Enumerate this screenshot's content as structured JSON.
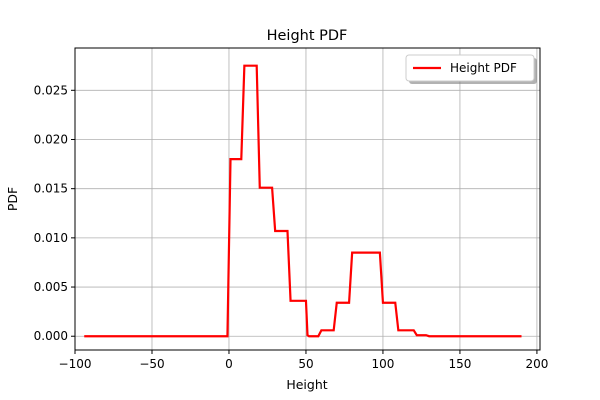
{
  "chart_data": {
    "type": "line",
    "title": "Height PDF",
    "xlabel": "Height",
    "ylabel": "PDF",
    "xlim": [
      -100,
      202
    ],
    "ylim": [
      -0.0014,
      0.0293
    ],
    "xticks": [
      -100,
      -50,
      0,
      50,
      100,
      150,
      200
    ],
    "xtick_labels": [
      "−100",
      "−50",
      "0",
      "50",
      "100",
      "150",
      "200"
    ],
    "yticks": [
      0.0,
      0.005,
      0.01,
      0.015,
      0.02,
      0.025
    ],
    "ytick_labels": [
      "0.000",
      "0.005",
      "0.010",
      "0.015",
      "0.020",
      "0.025"
    ],
    "grid": true,
    "legend": {
      "placement": "top-right",
      "shadow": true
    },
    "series": [
      {
        "name": "Height PDF",
        "color": "#ff0000",
        "x": [
          -94,
          -1,
          1,
          8,
          10,
          18,
          20,
          28,
          30,
          38,
          40,
          48,
          50,
          51,
          52,
          58,
          60,
          68,
          70,
          78,
          80,
          98,
          100,
          108,
          110,
          118,
          120,
          122,
          124,
          128,
          130,
          190
        ],
        "y": [
          0.0,
          0.0,
          0.018,
          0.018,
          0.0275,
          0.0275,
          0.0151,
          0.0151,
          0.0107,
          0.0107,
          0.0036,
          0.0036,
          0.0036,
          0.0001,
          0.0,
          0.0,
          0.0006,
          0.0006,
          0.0034,
          0.0034,
          0.0085,
          0.0085,
          0.0034,
          0.0034,
          0.0006,
          0.0006,
          0.0006,
          0.0001,
          0.0001,
          0.0001,
          0.0,
          0.0
        ]
      }
    ]
  }
}
